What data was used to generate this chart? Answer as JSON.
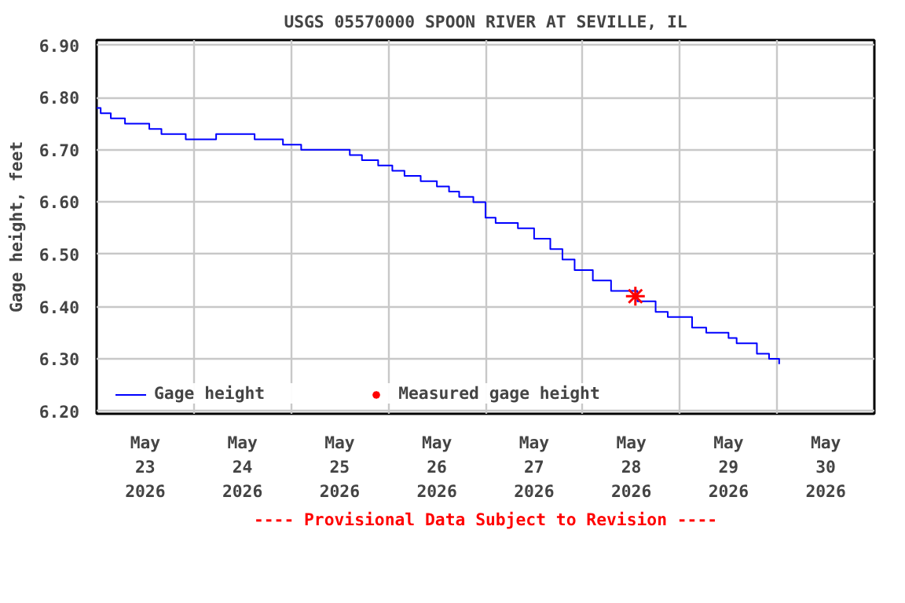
{
  "chart_data": {
    "type": "step",
    "title": "USGS 05570000 SPOON RIVER AT SEVILLE, IL",
    "ylabel": "Gage height, feet",
    "annotations": [
      "---- Provisional Data Subject to Revision ----"
    ],
    "xlim": [
      "2026-05-23T00:00",
      "2026-05-31T00:00"
    ],
    "xticks": [
      {
        "value": "2026-05-23T12:00",
        "label": "May\n23\n2026"
      },
      {
        "value": "2026-05-24T12:00",
        "label": "May\n24\n2026"
      },
      {
        "value": "2026-05-25T12:00",
        "label": "May\n25\n2026"
      },
      {
        "value": "2026-05-26T12:00",
        "label": "May\n26\n2026"
      },
      {
        "value": "2026-05-27T12:00",
        "label": "May\n27\n2026"
      },
      {
        "value": "2026-05-28T12:00",
        "label": "May\n28\n2026"
      },
      {
        "value": "2026-05-29T12:00",
        "label": "May\n29\n2026"
      },
      {
        "value": "2026-05-30T12:00",
        "label": "May\n30\n2026"
      },
      {
        "value": "2026-05-24T00:00",
        "label": null
      },
      {
        "value": "2026-05-25T00:00",
        "label": null
      },
      {
        "value": "2026-05-26T00:00",
        "label": null
      },
      {
        "value": "2026-05-27T00:00",
        "label": null
      },
      {
        "value": "2026-05-28T00:00",
        "label": null
      },
      {
        "value": "2026-05-29T00:00",
        "label": null
      },
      {
        "value": "2026-05-30T00:00",
        "label": null
      }
    ],
    "ylim": [
      6.195,
      6.91
    ],
    "yticks": [
      {
        "value": 6.2,
        "label": "6.20"
      },
      {
        "value": 6.3,
        "label": "6.30"
      },
      {
        "value": 6.4,
        "label": "6.40"
      },
      {
        "value": 6.5,
        "label": "6.50"
      },
      {
        "value": 6.6,
        "label": "6.60"
      },
      {
        "value": 6.7,
        "label": "6.70"
      },
      {
        "value": 6.8,
        "label": "6.80"
      },
      {
        "value": 6.9,
        "label": "6.90"
      }
    ],
    "grid": true,
    "legend": "bottom",
    "series": [
      {
        "name": "Gage height",
        "color": "#0000ff",
        "marker": "none",
        "x": [
          "2026-05-23T00:00",
          "2026-05-23T01:00",
          "2026-05-23T03:30",
          "2026-05-23T07:00",
          "2026-05-23T13:00",
          "2026-05-23T16:00",
          "2026-05-23T22:00",
          "2026-05-24T03:30",
          "2026-05-24T05:30",
          "2026-05-24T11:00",
          "2026-05-24T15:00",
          "2026-05-24T22:00",
          "2026-05-25T02:30",
          "2026-05-25T14:30",
          "2026-05-25T17:30",
          "2026-05-25T21:30",
          "2026-05-26T01:00",
          "2026-05-26T04:00",
          "2026-05-26T08:00",
          "2026-05-26T12:00",
          "2026-05-26T15:00",
          "2026-05-26T17:30",
          "2026-05-26T21:00",
          "2026-05-27T00:00",
          "2026-05-27T02:30",
          "2026-05-27T08:00",
          "2026-05-27T12:00",
          "2026-05-27T16:00",
          "2026-05-27T19:00",
          "2026-05-27T22:00",
          "2026-05-28T02:30",
          "2026-05-28T07:00",
          "2026-05-28T13:30",
          "2026-05-28T18:00",
          "2026-05-28T21:00",
          "2026-05-29T03:00",
          "2026-05-29T06:30",
          "2026-05-29T12:00",
          "2026-05-29T14:00",
          "2026-05-29T19:00",
          "2026-05-29T22:00",
          "2026-05-30T00:30"
        ],
        "values": [
          6.78,
          6.77,
          6.76,
          6.75,
          6.74,
          6.73,
          6.72,
          6.72,
          6.73,
          6.73,
          6.72,
          6.71,
          6.7,
          6.69,
          6.68,
          6.67,
          6.66,
          6.65,
          6.64,
          6.63,
          6.62,
          6.61,
          6.6,
          6.57,
          6.56,
          6.55,
          6.53,
          6.51,
          6.49,
          6.47,
          6.45,
          6.43,
          6.41,
          6.39,
          6.38,
          6.36,
          6.35,
          6.34,
          6.33,
          6.31,
          6.3,
          6.29
        ]
      },
      {
        "name": "Measured gage height",
        "type": "scatter",
        "color": "#ff0000",
        "marker": "cross",
        "x": [
          "2026-05-28T13:00"
        ],
        "values": [
          6.42
        ]
      }
    ]
  }
}
